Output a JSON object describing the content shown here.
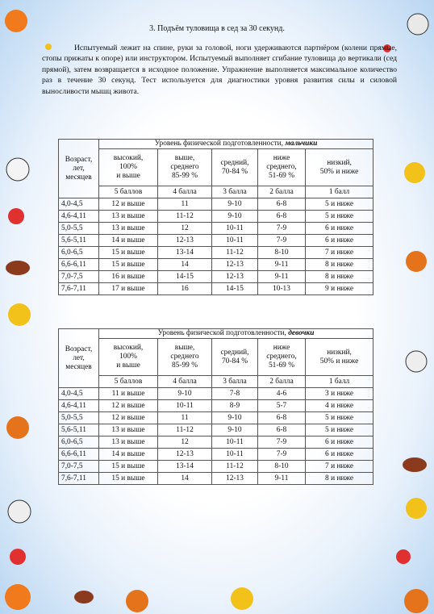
{
  "title": "3. Подъём туловища в сед за 30 секунд.",
  "paragraph": "Испытуемый лежит на спине, руки за головой, ноги  удерживаются партнёром (колени прямые, стопы прижаты к опоре) или инструктором. Испытуемый выполняет сгибание туловища до вертикали (сед прямой), затем возвращается в исходное положение. Упражнение выполняется максимальное количество раз в течение 30 секунд.  Тест используется для диагностики уровня развития силы и силовой выносливости мышц живота.",
  "tables": [
    {
      "header_prefix": "Уровень физической подготовленности, ",
      "header_group": "мальчики",
      "age_header": [
        "Возраст,",
        "лет,",
        "месяцев"
      ],
      "level_headers": [
        [
          "высокий,",
          "100%",
          "и выше"
        ],
        [
          "выше,",
          "среднего",
          "85-99 %"
        ],
        [
          "средний,",
          "70-84 %"
        ],
        [
          "ниже",
          "среднего,",
          "51-69 %"
        ],
        [
          "низкий,",
          "50% и ниже"
        ]
      ],
      "scores": [
        "5 баллов",
        "4 балла",
        "3 балла",
        "2 балла",
        "1 балл"
      ],
      "rows": [
        [
          "4,0-4,5",
          "12 и выше",
          "11",
          "9-10",
          "6-8",
          "5 и ниже"
        ],
        [
          "4,6-4,11",
          "13 и выше",
          "11-12",
          "9-10",
          "6-8",
          "5 и ниже"
        ],
        [
          "5,0-5,5",
          "13 и выше",
          "12",
          "10-11",
          "7-9",
          "6 и ниже"
        ],
        [
          "5,6-5,11",
          "14 и выше",
          "12-13",
          "10-11",
          "7-9",
          "6 и ниже"
        ],
        [
          "6,0-6,5",
          "15 и выше",
          "13-14",
          "11-12",
          "8-10",
          "7 и ниже"
        ],
        [
          "6,6-6,11",
          "15 и выше",
          "14",
          "12-13",
          "9-11",
          "8 и ниже"
        ],
        [
          "7,0-7,5",
          "16 и выше",
          "14-15",
          "12-13",
          "9-11",
          "8 и ниже"
        ],
        [
          "7,6-7,11",
          "17 и выше",
          "16",
          "14-15",
          "10-13",
          "9 и ниже"
        ]
      ]
    },
    {
      "header_prefix": "Уровень физической подготовленности, ",
      "header_group": "девочки",
      "age_header": [
        "Возраст,",
        "лет,",
        "месяцев"
      ],
      "level_headers": [
        [
          "высокий,",
          "100%",
          "и выше"
        ],
        [
          "выше,",
          "среднего",
          "85-99 %"
        ],
        [
          "средний,",
          "70-84 %"
        ],
        [
          "ниже",
          "среднего,",
          "51-69 %"
        ],
        [
          "низкий,",
          "50% и ниже"
        ]
      ],
      "scores": [
        "5 баллов",
        "4 балла",
        "3 балла",
        "2 балла",
        "1 балл"
      ],
      "rows": [
        [
          "4,0-4,5",
          "11 и выше",
          "9-10",
          "7-8",
          "4-6",
          "3 и ниже"
        ],
        [
          "4,6-4,11",
          "12 и выше",
          "10-11",
          "8-9",
          "5-7",
          "4 и ниже"
        ],
        [
          "5,0-5,5",
          "12 и выше",
          "11",
          "9-10",
          "6-8",
          "5 и ниже"
        ],
        [
          "5,6-5,11",
          "13 и выше",
          "11-12",
          "9-10",
          "6-8",
          "5 и ниже"
        ],
        [
          "6,0-6,5",
          "13 и выше",
          "12",
          "10-11",
          "7-9",
          "6 и ниже"
        ],
        [
          "6,6-6,11",
          "14 и выше",
          "12-13",
          "10-11",
          "7-9",
          "6 и ниже"
        ],
        [
          "7,0-7,5",
          "15 и выше",
          "13-14",
          "11-12",
          "8-10",
          "7 и ниже"
        ],
        [
          "7,6-7,11",
          "15 и выше",
          "14",
          "12-13",
          "9-11",
          "8 и ниже"
        ]
      ]
    }
  ]
}
